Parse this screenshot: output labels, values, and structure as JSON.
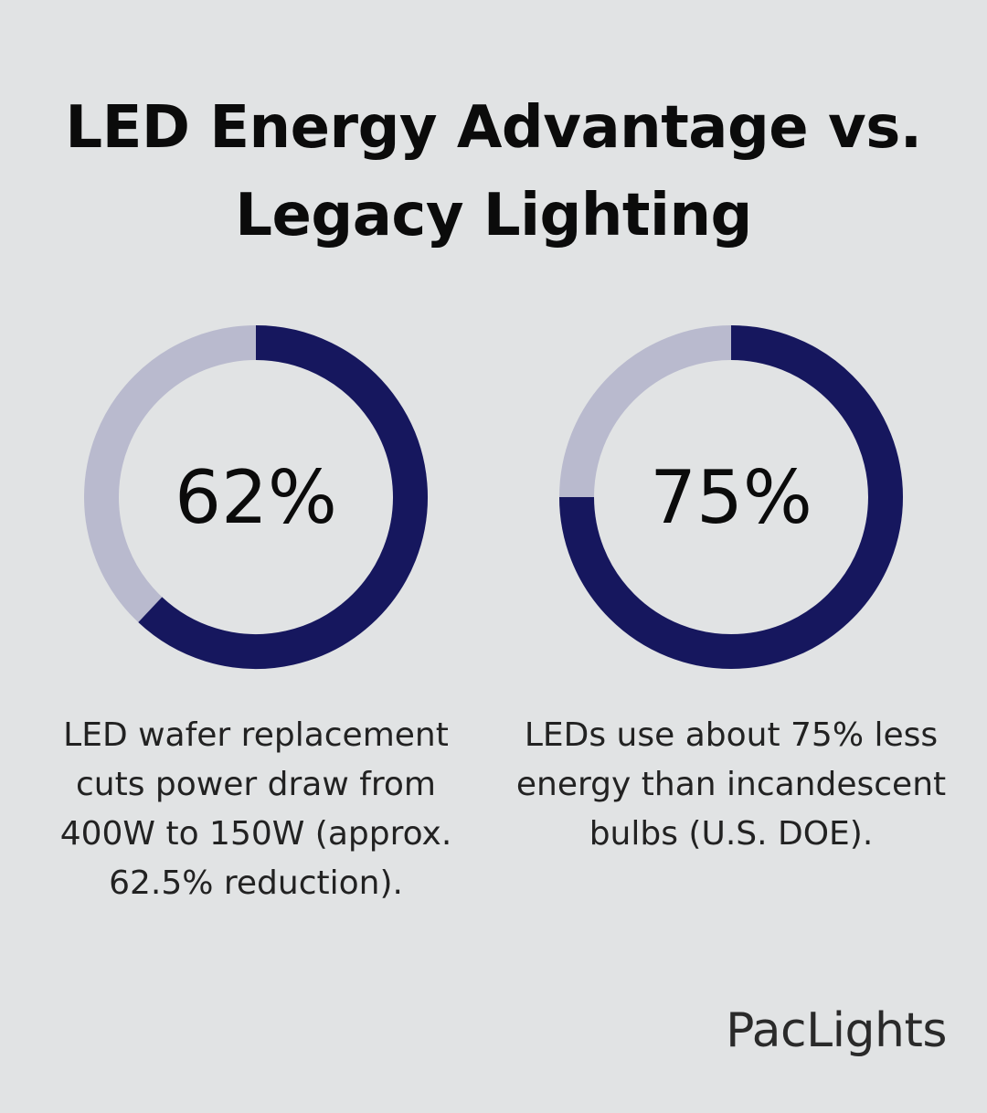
{
  "title_lines": [
    "LED Energy Advantage vs.",
    "Legacy Lighting"
  ],
  "colors": {
    "background": "#e1e3e4",
    "ring_fill": "#16175e",
    "ring_track": "#b9bace"
  },
  "chart_data": [
    {
      "type": "pie",
      "style": "donut",
      "value": 62,
      "max": 100,
      "label": "62%",
      "caption": "LED wafer replacement cuts power draw from 400W to 150W (approx. 62.5% reduction)."
    },
    {
      "type": "pie",
      "style": "donut",
      "value": 75,
      "max": 100,
      "label": "75%",
      "caption": "LEDs use about 75% less energy than incandescent bulbs (U.S. DOE)."
    }
  ],
  "brand": "PacLights"
}
